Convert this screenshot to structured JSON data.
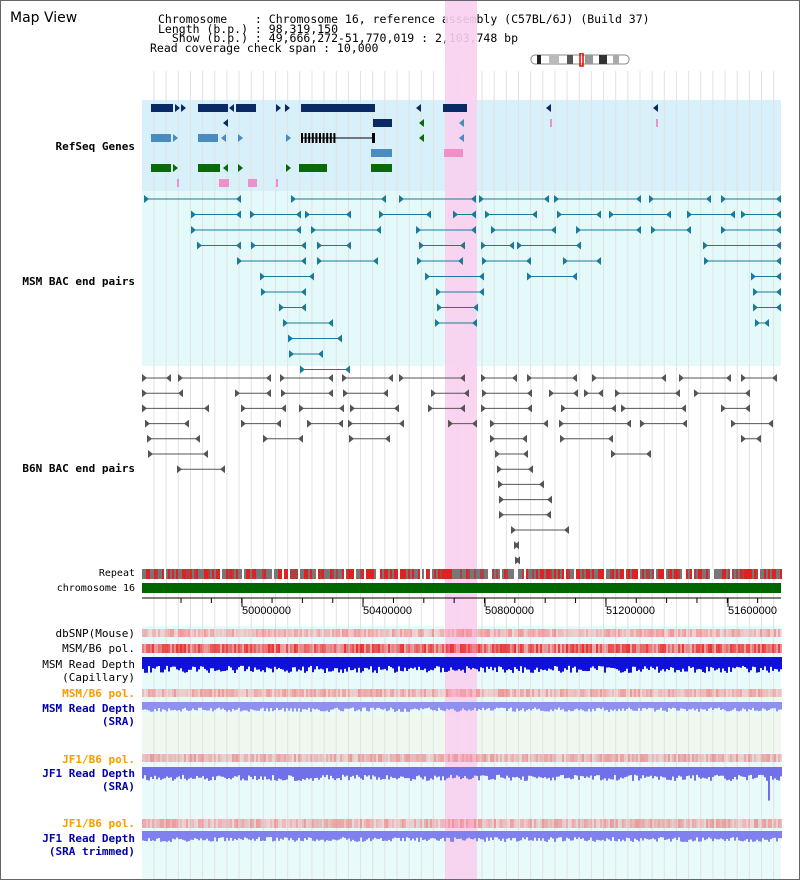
{
  "header": {
    "title": "Map View",
    "chromosome_line": "Chromosome    : Chromosome 16, reference assembly (C57BL/6J) (Build 37)",
    "length_line": "Length (b.p.) : 98,319,150",
    "show_line": "  Show (b.p.) : 49,666,272-51,770,019 : 2,103,748 bp",
    "coverage_line": "Read coverage check span : 10,000"
  },
  "tracks": {
    "refseq": {
      "label": "RefSeq Genes",
      "color": "#000099"
    },
    "msm_bac": {
      "label": "MSM BAC end pairs",
      "color": "#006688"
    },
    "b6n_bac": {
      "label": "B6N BAC end pairs",
      "color": "#333333"
    },
    "repeat": {
      "label": "Repeat"
    },
    "chromosome": {
      "label": "chromosome 16"
    },
    "dbsnp": {
      "label": "dbSNP(Mouse)"
    },
    "msm_b6_pol": {
      "label": "MSM/B6 pol."
    },
    "msm_depth_cap": {
      "label": "MSM Read Depth\n(Capillary)"
    },
    "msm_b6_pol_2": {
      "label": "MSM/B6 pol.",
      "color": "#ff9900"
    },
    "msm_depth_sra": {
      "label": "MSM Read Depth\n(SRA)",
      "color": "#0000aa"
    },
    "jf1_b6_pol": {
      "label": "JF1/B6 pol.",
      "color": "#ff9900"
    },
    "jf1_depth_sra": {
      "label": "JF1 Read Depth\n(SRA)",
      "color": "#0000aa"
    },
    "jf1_b6_pol_2": {
      "label": "JF1/B6 pol.",
      "color": "#ff9900"
    },
    "jf1_depth_trim": {
      "label": "JF1 Read Depth\n(SRA trimmed)",
      "color": "#0000aa"
    }
  },
  "ruler": {
    "ticks": [
      "50000000",
      "50400000",
      "50800000",
      "51200000",
      "51600000"
    ]
  },
  "colors": {
    "highlight": "#f8d0f0",
    "refseq_bg": "#d8f0fa",
    "bac_bg": "#e4fafa",
    "gene_navy": "#0a2a66",
    "gene_blue": "#4a8cc0",
    "gene_green": "#0a6a0a",
    "pink": "#f090c8",
    "chrom_green": "#006600"
  }
}
